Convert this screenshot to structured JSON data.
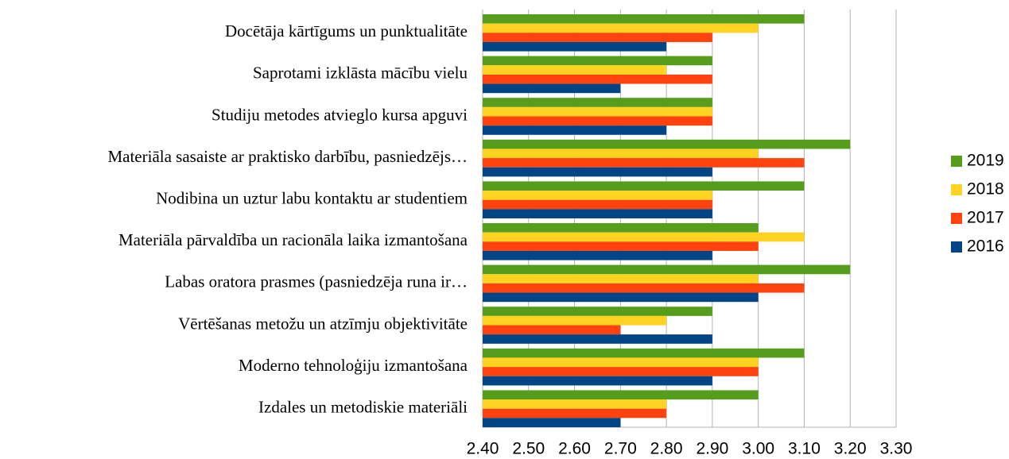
{
  "chart_data": {
    "type": "barh",
    "categories": [
      "Docētāja kārtīgums un punktualitāte",
      "Saprotami izklāsta mācību vielu",
      "Studiju metodes atvieglo kursa apguvi",
      "Materiāla sasaiste ar praktisko darbību, pasniedzējs…",
      "Nodibina un uztur labu kontaktu ar studentiem",
      "Materiāla pārvaldība un racionāla laika izmantošana",
      "Labas oratora prasmes (pasniedzēja runa ir…",
      "Vērtēšanas metožu un atzīmju objektivitāte",
      "Moderno tehnoloģiju izmantošana",
      "Izdales un metodiskie materiāli"
    ],
    "series": [
      {
        "name": "2019",
        "color": "#579d1c",
        "values": [
          3.1,
          2.9,
          2.9,
          3.2,
          3.1,
          3.0,
          3.2,
          2.9,
          3.1,
          3.0
        ]
      },
      {
        "name": "2018",
        "color": "#ffd320",
        "values": [
          3.0,
          2.8,
          2.9,
          3.0,
          2.9,
          3.1,
          3.0,
          2.8,
          3.0,
          2.8
        ]
      },
      {
        "name": "2017",
        "color": "#ff420e",
        "values": [
          2.9,
          2.9,
          2.9,
          3.1,
          2.9,
          3.0,
          3.1,
          2.7,
          3.0,
          2.8
        ]
      },
      {
        "name": "2016",
        "color": "#004586",
        "values": [
          2.8,
          2.7,
          2.8,
          2.9,
          2.9,
          2.9,
          3.0,
          2.9,
          2.9,
          2.7
        ]
      }
    ],
    "xlim": [
      2.4,
      3.3
    ],
    "xticks": [
      {
        "value": 2.4,
        "label": "2.40"
      },
      {
        "value": 2.5,
        "label": "2.50"
      },
      {
        "value": 2.6,
        "label": "2.60"
      },
      {
        "value": 2.7,
        "label": "2.70"
      },
      {
        "value": 2.8,
        "label": "2.80"
      },
      {
        "value": 2.9,
        "label": "2.90"
      },
      {
        "value": 3.0,
        "label": "3.00"
      },
      {
        "value": 3.1,
        "label": "3.10"
      },
      {
        "value": 3.2,
        "label": "3.20"
      },
      {
        "value": 3.3,
        "label": "3.30"
      }
    ],
    "grid": true,
    "legend": "right"
  }
}
